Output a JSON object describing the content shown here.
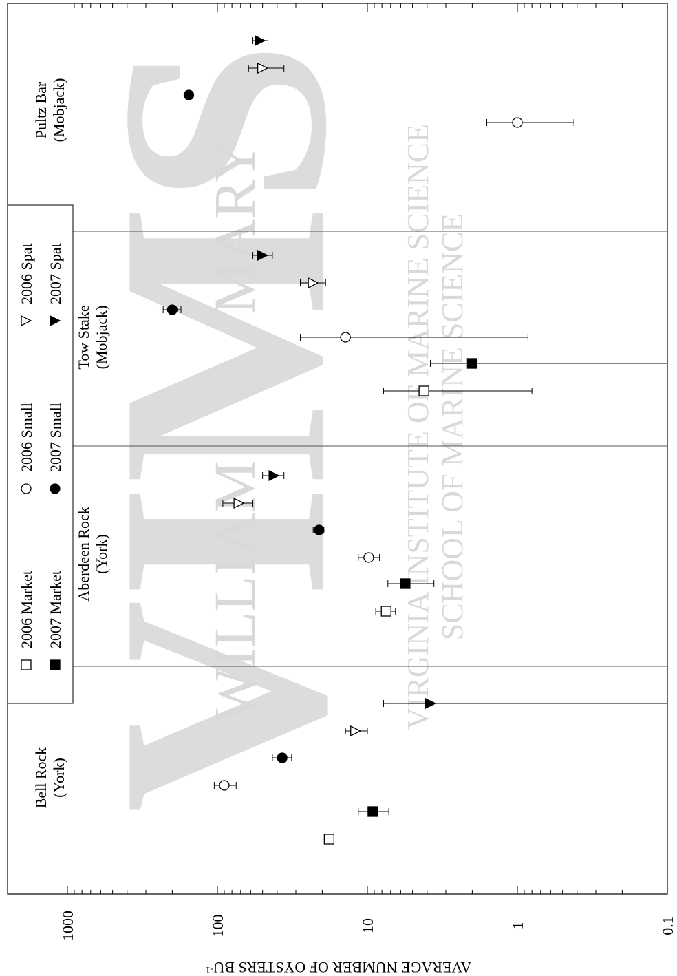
{
  "chart_data": {
    "type": "scatter",
    "ylabel": "AVERAGE NUMBER OF OYSTERS BU",
    "ylabel_superscript": "-1",
    "yscale": "log",
    "ylim": [
      0.1,
      1000
    ],
    "y_ticks": [
      {
        "value": 1000,
        "label": "1000"
      },
      {
        "value": 100,
        "label": "100"
      },
      {
        "value": 10,
        "label": "10"
      },
      {
        "value": 1,
        "label": "1"
      },
      {
        "value": 0.1,
        "label": "0.1"
      }
    ],
    "grid": false,
    "legend": {
      "placement": "inside-left",
      "entries": [
        {
          "series": "2006 Market",
          "label": "2006 Market"
        },
        {
          "series": "2007 Market",
          "label": "2007 Market"
        },
        {
          "series": "2006 Small",
          "label": "2006 Small"
        },
        {
          "series": "2007 Small",
          "label": "2007 Small"
        },
        {
          "series": "2006 Spat",
          "label": "2006 Spat"
        },
        {
          "series": "2007 Spat",
          "label": "2007 Spat"
        }
      ]
    },
    "categories": [
      {
        "id": "bell",
        "line1": "Bell Rock",
        "line2": "(York)"
      },
      {
        "id": "aberdeen",
        "line1": "Aberdeen Rock",
        "line2": "(York)"
      },
      {
        "id": "tow",
        "line1": "Tow Stake",
        "line2": "(Mobjack)"
      },
      {
        "id": "pultz",
        "line1": "Pultz Bar",
        "line2": "(Mobjack)"
      }
    ],
    "series": [
      {
        "name": "2006 Market",
        "marker": "open-square",
        "points": [
          {
            "site": "bell",
            "y": 18
          },
          {
            "site": "aberdeen",
            "y": 7.5,
            "low": 6.5,
            "high": 8.8
          },
          {
            "site": "tow",
            "y": 4.2,
            "low": 0.8,
            "high": 7.8
          }
        ]
      },
      {
        "name": "2007 Market",
        "marker": "filled-square",
        "points": [
          {
            "site": "bell",
            "y": 9.2,
            "low": 7.2,
            "high": 11.5
          },
          {
            "site": "aberdeen",
            "y": 5.6,
            "low": 3.6,
            "high": 7.3
          },
          {
            "site": "tow",
            "y": 2.0,
            "low": 0.1,
            "high": 3.8
          }
        ]
      },
      {
        "name": "2006 Small",
        "marker": "open-circle",
        "points": [
          {
            "site": "bell",
            "y": 90,
            "low": 75,
            "high": 105
          },
          {
            "site": "aberdeen",
            "y": 9.8,
            "low": 8.3,
            "high": 11.5
          },
          {
            "site": "tow",
            "y": 14,
            "low": 0.85,
            "high": 28
          },
          {
            "site": "pultz",
            "y": 1.0,
            "low": 0.42,
            "high": 1.6
          }
        ]
      },
      {
        "name": "2007 Small",
        "marker": "filled-circle",
        "points": [
          {
            "site": "bell",
            "y": 37,
            "low": 32,
            "high": 43
          },
          {
            "site": "aberdeen",
            "y": 21,
            "low": 19.5,
            "high": 23
          },
          {
            "site": "tow",
            "y": 200,
            "low": 175,
            "high": 230
          },
          {
            "site": "pultz",
            "y": 155
          }
        ]
      },
      {
        "name": "2006 Spat",
        "marker": "open-triangle",
        "points": [
          {
            "site": "bell",
            "y": 12,
            "low": 10,
            "high": 14
          },
          {
            "site": "aberdeen",
            "y": 72,
            "low": 58,
            "high": 92
          },
          {
            "site": "tow",
            "y": 23,
            "low": 19,
            "high": 28
          },
          {
            "site": "pultz",
            "y": 50,
            "low": 36,
            "high": 62
          }
        ]
      },
      {
        "name": "2007 Spat",
        "marker": "filled-triangle",
        "points": [
          {
            "site": "bell",
            "y": 3.8,
            "low": 0.1,
            "high": 7.8
          },
          {
            "site": "aberdeen",
            "y": 42,
            "low": 36,
            "high": 50
          },
          {
            "site": "tow",
            "y": 50,
            "low": 43,
            "high": 58
          },
          {
            "site": "pultz",
            "y": 52,
            "low": 46,
            "high": 58
          }
        ]
      }
    ]
  },
  "watermark": {
    "line1": "WILLIAM",
    "line1b": "MARY",
    "logo": "VIMS",
    "line2": "VIRGINIA INSTITUTE OF MARINE SCIENCE",
    "line3": "SCHOOL OF MARINE SCIENCE"
  }
}
